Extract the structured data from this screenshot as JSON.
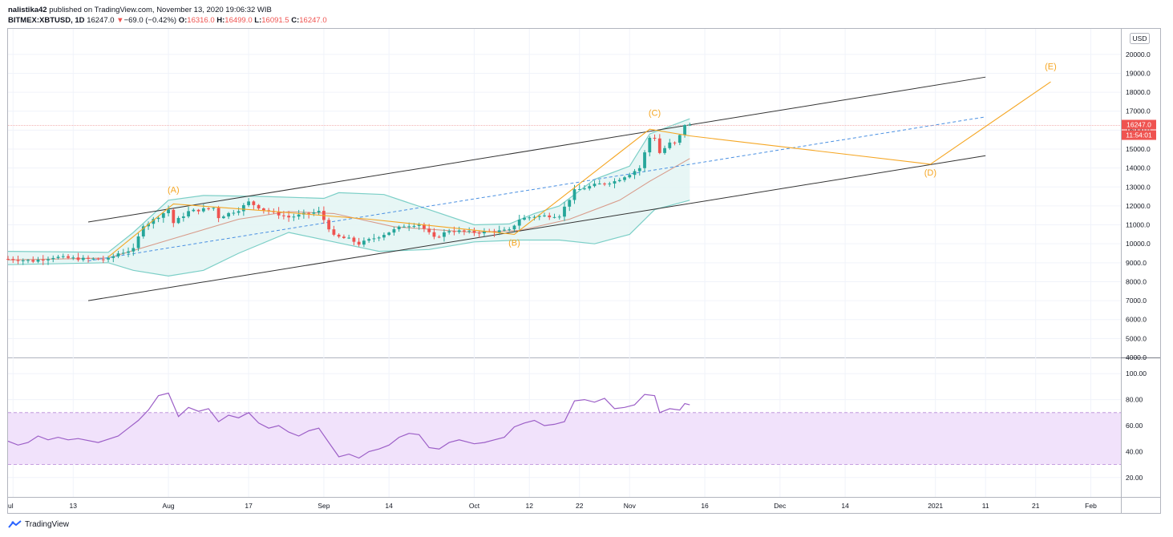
{
  "header": {
    "publisher": "nalistika42",
    "published_text": "published on TradingView.com, November 13, 2020 19:06:32 WIB",
    "symbol": "BITMEX:XBTUSD, 1D",
    "last": "16247.0",
    "change_arrow": "▼",
    "change": "−69.0 (−0.42%)",
    "o_label": "O:",
    "o_value": "16316.0",
    "h_label": "H:",
    "h_value": "16499.0",
    "l_label": "L:",
    "l_value": "16091.5",
    "c_label": "C:",
    "c_value": "16247.0"
  },
  "price_axis": {
    "currency": "USD",
    "price_tag": "16247.0",
    "countdown_tag": "11:54:01"
  },
  "footer": {
    "brand": "TradingView"
  },
  "colors": {
    "up": "#26a69a",
    "down": "#ef5350",
    "band": "#7ccfc7",
    "band_fill": "#e3f4f3",
    "basis": "#d89b8a",
    "wave": "#f5a623",
    "channel": "#333333",
    "mid": "#4a90e2",
    "rsi": "#9c5fc7",
    "rsi_zone": "#f1e2fb"
  },
  "chart_data": [
    {
      "type": "candlestick",
      "x_range": [
        "2020-06-30",
        "2021-02-07"
      ],
      "y_range": [
        4000,
        20500
      ],
      "x_ticks": [
        {
          "label": "ul",
          "date": "2020-07-01"
        },
        {
          "label": "13",
          "date": "2020-07-13"
        },
        {
          "label": "Aug",
          "date": "2020-08-01"
        },
        {
          "label": "17",
          "date": "2020-08-17"
        },
        {
          "label": "Sep",
          "date": "2020-09-01"
        },
        {
          "label": "14",
          "date": "2020-09-14"
        },
        {
          "label": "Oct",
          "date": "2020-10-01"
        },
        {
          "label": "12",
          "date": "2020-10-12"
        },
        {
          "label": "22",
          "date": "2020-10-22"
        },
        {
          "label": "Nov",
          "date": "2020-11-01"
        },
        {
          "label": "16",
          "date": "2020-11-16"
        },
        {
          "label": "Dec",
          "date": "2020-12-01"
        },
        {
          "label": "14",
          "date": "2020-12-14"
        },
        {
          "label": "2021",
          "date": "2021-01-01"
        },
        {
          "label": "11",
          "date": "2021-01-11"
        },
        {
          "label": "21",
          "date": "2021-01-21"
        },
        {
          "label": "Feb",
          "date": "2021-02-01"
        }
      ],
      "y_ticks": [
        "20000.0",
        "19000.0",
        "18000.0",
        "17000.0",
        "16000.0",
        "15000.0",
        "14000.0",
        "13000.0",
        "12000.0",
        "11000.0",
        "10000.0",
        "9000.0",
        "8000.0",
        "7000.0",
        "6000.0",
        "5000.0",
        "4000.0"
      ],
      "close_anchors": [
        [
          "2020-06-30",
          9200
        ],
        [
          "2020-07-05",
          9100
        ],
        [
          "2020-07-09",
          9300
        ],
        [
          "2020-07-15",
          9200
        ],
        [
          "2020-07-20",
          9180
        ],
        [
          "2020-07-22",
          9500
        ],
        [
          "2020-07-25",
          9700
        ],
        [
          "2020-07-27",
          11000
        ],
        [
          "2020-07-28",
          11100
        ],
        [
          "2020-08-01",
          11800
        ],
        [
          "2020-08-02",
          11100
        ],
        [
          "2020-08-05",
          11700
        ],
        [
          "2020-08-10",
          11900
        ],
        [
          "2020-08-11",
          11400
        ],
        [
          "2020-08-15",
          11800
        ],
        [
          "2020-08-17",
          12200
        ],
        [
          "2020-08-20",
          11800
        ],
        [
          "2020-08-25",
          11400
        ],
        [
          "2020-08-31",
          11700
        ],
        [
          "2020-09-03",
          10400
        ],
        [
          "2020-09-06",
          10250
        ],
        [
          "2020-09-08",
          10000
        ],
        [
          "2020-09-12",
          10400
        ],
        [
          "2020-09-17",
          10950
        ],
        [
          "2020-09-20",
          11050
        ],
        [
          "2020-09-23",
          10300
        ],
        [
          "2020-09-26",
          10700
        ],
        [
          "2020-10-01",
          10600
        ],
        [
          "2020-10-08",
          10700
        ],
        [
          "2020-10-10",
          11300
        ],
        [
          "2020-10-13",
          11450
        ],
        [
          "2020-10-18",
          11500
        ],
        [
          "2020-10-21",
          12800
        ],
        [
          "2020-10-25",
          13100
        ],
        [
          "2020-10-29",
          13300
        ],
        [
          "2020-11-01",
          13700
        ],
        [
          "2020-11-03",
          14000
        ],
        [
          "2020-11-05",
          15600
        ],
        [
          "2020-11-06",
          15600
        ],
        [
          "2020-11-07",
          14800
        ],
        [
          "2020-11-09",
          15300
        ],
        [
          "2020-11-10",
          15300
        ],
        [
          "2020-11-11",
          15700
        ],
        [
          "2020-11-12",
          16300
        ],
        [
          "2020-11-13",
          16247
        ]
      ],
      "bollinger": {
        "upper": [
          [
            "2020-06-30",
            9600
          ],
          [
            "2020-07-20",
            9550
          ],
          [
            "2020-07-25",
            10600
          ],
          [
            "2020-08-01",
            12300
          ],
          [
            "2020-08-08",
            12550
          ],
          [
            "2020-08-20",
            12500
          ],
          [
            "2020-09-01",
            12400
          ],
          [
            "2020-09-04",
            12700
          ],
          [
            "2020-09-13",
            12600
          ],
          [
            "2020-09-22",
            11800
          ],
          [
            "2020-10-01",
            11000
          ],
          [
            "2020-10-08",
            11050
          ],
          [
            "2020-10-13",
            11600
          ],
          [
            "2020-10-18",
            12000
          ],
          [
            "2020-10-25",
            13400
          ],
          [
            "2020-11-01",
            14100
          ],
          [
            "2020-11-05",
            15800
          ],
          [
            "2020-11-13",
            16600
          ]
        ],
        "middle": [
          [
            "2020-06-30",
            9150
          ],
          [
            "2020-07-20",
            9250
          ],
          [
            "2020-08-01",
            10200
          ],
          [
            "2020-08-15",
            11300
          ],
          [
            "2020-08-25",
            11700
          ],
          [
            "2020-09-03",
            11600
          ],
          [
            "2020-09-15",
            10900
          ],
          [
            "2020-10-01",
            10600
          ],
          [
            "2020-10-10",
            10700
          ],
          [
            "2020-10-20",
            11300
          ],
          [
            "2020-10-30",
            12300
          ],
          [
            "2020-11-05",
            13300
          ],
          [
            "2020-11-13",
            14500
          ]
        ],
        "lower": [
          [
            "2020-06-30",
            8900
          ],
          [
            "2020-07-20",
            9000
          ],
          [
            "2020-07-25",
            8600
          ],
          [
            "2020-08-01",
            8300
          ],
          [
            "2020-08-08",
            8600
          ],
          [
            "2020-08-15",
            9500
          ],
          [
            "2020-08-25",
            10600
          ],
          [
            "2020-09-03",
            10100
          ],
          [
            "2020-09-12",
            9600
          ],
          [
            "2020-09-22",
            9700
          ],
          [
            "2020-10-01",
            10100
          ],
          [
            "2020-10-10",
            10200
          ],
          [
            "2020-10-18",
            10200
          ],
          [
            "2020-10-25",
            10000
          ],
          [
            "2020-11-01",
            10500
          ],
          [
            "2020-11-06",
            11800
          ],
          [
            "2020-11-13",
            12300
          ]
        ]
      },
      "channel": {
        "upper": [
          [
            "2020-07-16",
            11150
          ],
          [
            "2021-01-11",
            18800
          ]
        ],
        "lower": [
          [
            "2020-07-16",
            7000
          ],
          [
            "2021-01-11",
            14650
          ]
        ],
        "middle": [
          [
            "2020-07-16",
            9100
          ],
          [
            "2021-01-11",
            16700
          ]
        ]
      },
      "wave_path": [
        [
          "2020-07-20",
          9300
        ],
        [
          "2020-08-02",
          12100
        ],
        [
          "2020-08-20",
          11750
        ],
        [
          "2020-09-10",
          11300
        ],
        [
          "2020-10-09",
          10500
        ],
        [
          "2020-11-05",
          16050
        ],
        [
          "2020-11-13",
          15700
        ],
        [
          "2020-12-31",
          14200
        ],
        [
          "2021-01-24",
          18550
        ]
      ],
      "wave_labels": [
        {
          "text": "(A)",
          "date": "2020-08-02",
          "price": 12700
        },
        {
          "text": "(B)",
          "date": "2020-10-09",
          "price": 9900
        },
        {
          "text": "(C)",
          "date": "2020-11-06",
          "price": 16750
        },
        {
          "text": "(D)",
          "date": "2020-12-31",
          "price": 13600
        },
        {
          "text": "(E)",
          "date": "2021-01-24",
          "price": 19200
        }
      ],
      "last_price": 16247
    },
    {
      "type": "line",
      "x_range": [
        "2020-06-30",
        "2021-02-07"
      ],
      "y_range": [
        10,
        110
      ],
      "y_ticks": [
        "100.00",
        "80.00",
        "60.00",
        "40.00",
        "20.00"
      ],
      "band": [
        30,
        70
      ],
      "rsi": [
        [
          "2020-06-30",
          48
        ],
        [
          "2020-07-02",
          45
        ],
        [
          "2020-07-04",
          47
        ],
        [
          "2020-07-06",
          52
        ],
        [
          "2020-07-08",
          49
        ],
        [
          "2020-07-10",
          51
        ],
        [
          "2020-07-12",
          49
        ],
        [
          "2020-07-14",
          50
        ],
        [
          "2020-07-18",
          47
        ],
        [
          "2020-07-22",
          52
        ],
        [
          "2020-07-24",
          58
        ],
        [
          "2020-07-26",
          64
        ],
        [
          "2020-07-28",
          72
        ],
        [
          "2020-07-30",
          83
        ],
        [
          "2020-08-01",
          85
        ],
        [
          "2020-08-03",
          67
        ],
        [
          "2020-08-05",
          74
        ],
        [
          "2020-08-07",
          71
        ],
        [
          "2020-08-09",
          73
        ],
        [
          "2020-08-11",
          63
        ],
        [
          "2020-08-13",
          68
        ],
        [
          "2020-08-15",
          66
        ],
        [
          "2020-08-17",
          70
        ],
        [
          "2020-08-19",
          62
        ],
        [
          "2020-08-21",
          58
        ],
        [
          "2020-08-23",
          60
        ],
        [
          "2020-08-25",
          55
        ],
        [
          "2020-08-27",
          52
        ],
        [
          "2020-08-29",
          56
        ],
        [
          "2020-08-31",
          58
        ],
        [
          "2020-09-02",
          47
        ],
        [
          "2020-09-04",
          36
        ],
        [
          "2020-09-06",
          38
        ],
        [
          "2020-09-08",
          35
        ],
        [
          "2020-09-10",
          40
        ],
        [
          "2020-09-12",
          42
        ],
        [
          "2020-09-14",
          45
        ],
        [
          "2020-09-16",
          51
        ],
        [
          "2020-09-18",
          54
        ],
        [
          "2020-09-20",
          53
        ],
        [
          "2020-09-22",
          43
        ],
        [
          "2020-09-24",
          42
        ],
        [
          "2020-09-26",
          47
        ],
        [
          "2020-09-28",
          49
        ],
        [
          "2020-10-01",
          46
        ],
        [
          "2020-10-03",
          47
        ],
        [
          "2020-10-05",
          49
        ],
        [
          "2020-10-07",
          51
        ],
        [
          "2020-10-09",
          59
        ],
        [
          "2020-10-11",
          62
        ],
        [
          "2020-10-13",
          64
        ],
        [
          "2020-10-15",
          60
        ],
        [
          "2020-10-17",
          61
        ],
        [
          "2020-10-19",
          63
        ],
        [
          "2020-10-21",
          79
        ],
        [
          "2020-10-23",
          80
        ],
        [
          "2020-10-25",
          78
        ],
        [
          "2020-10-27",
          81
        ],
        [
          "2020-10-29",
          73
        ],
        [
          "2020-10-31",
          74
        ],
        [
          "2020-11-02",
          76
        ],
        [
          "2020-11-04",
          84
        ],
        [
          "2020-11-06",
          83
        ],
        [
          "2020-11-07",
          70
        ],
        [
          "2020-11-09",
          73
        ],
        [
          "2020-11-11",
          72
        ],
        [
          "2020-11-12",
          77
        ],
        [
          "2020-11-13",
          76
        ]
      ]
    }
  ]
}
